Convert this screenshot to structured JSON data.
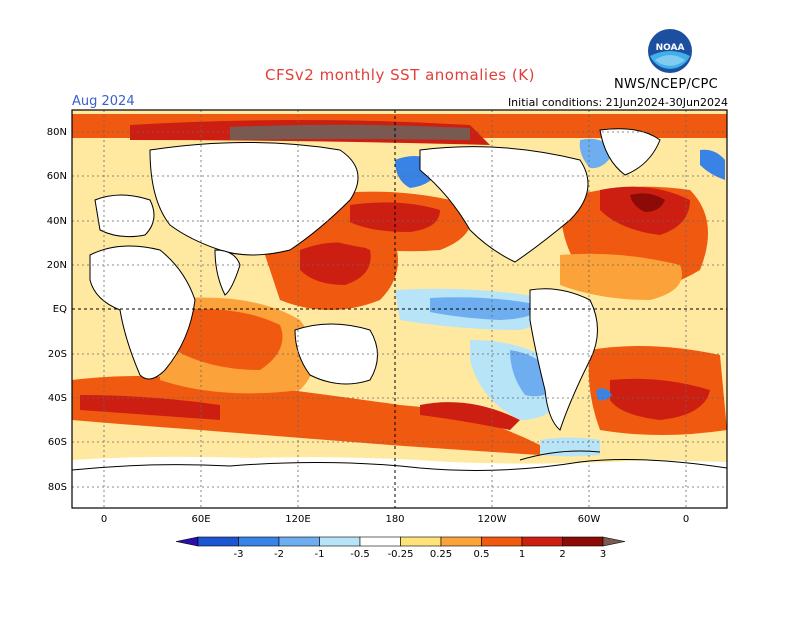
{
  "header": {
    "title": "CFSv2 monthly SST anomalies (K)",
    "month": "Aug 2024",
    "initial_conditions": "Initial conditions: 21Jun2024-30Jun2024",
    "agency": "NWS/NCEP/CPC",
    "logo_text": "NOAA"
  },
  "map": {
    "lon_labels": [
      "0",
      "60E",
      "120E",
      "180",
      "120W",
      "60W",
      "0"
    ],
    "lat_labels": [
      "80N",
      "60N",
      "40N",
      "20N",
      "EQ",
      "20S",
      "40S",
      "60S",
      "80S"
    ]
  },
  "colorbar": {
    "labels": [
      "-3",
      "-2",
      "-1",
      "-0.5",
      "-0.25",
      "0.25",
      "0.5",
      "1",
      "2",
      "3"
    ],
    "colors": [
      "#2a0fa8",
      "#1c55d2",
      "#3a83e6",
      "#6eaef0",
      "#b8e4f8",
      "#ffffff",
      "#ffe27a",
      "#fba33a",
      "#f05a10",
      "#cc1f12",
      "#8c0a08",
      "#7a5a50"
    ]
  },
  "colors": {
    "title": "#e0403a",
    "month": "#3a5fd0",
    "warm_light": "#ffe27a",
    "warm_mid": "#fba33a",
    "warm": "#f05a10",
    "hot": "#cc1f12",
    "very_hot": "#8c0a08",
    "extreme": "#7a5a50",
    "cool_light": "#b8e4f8",
    "cool": "#6eaef0",
    "cold": "#3a83e6"
  }
}
